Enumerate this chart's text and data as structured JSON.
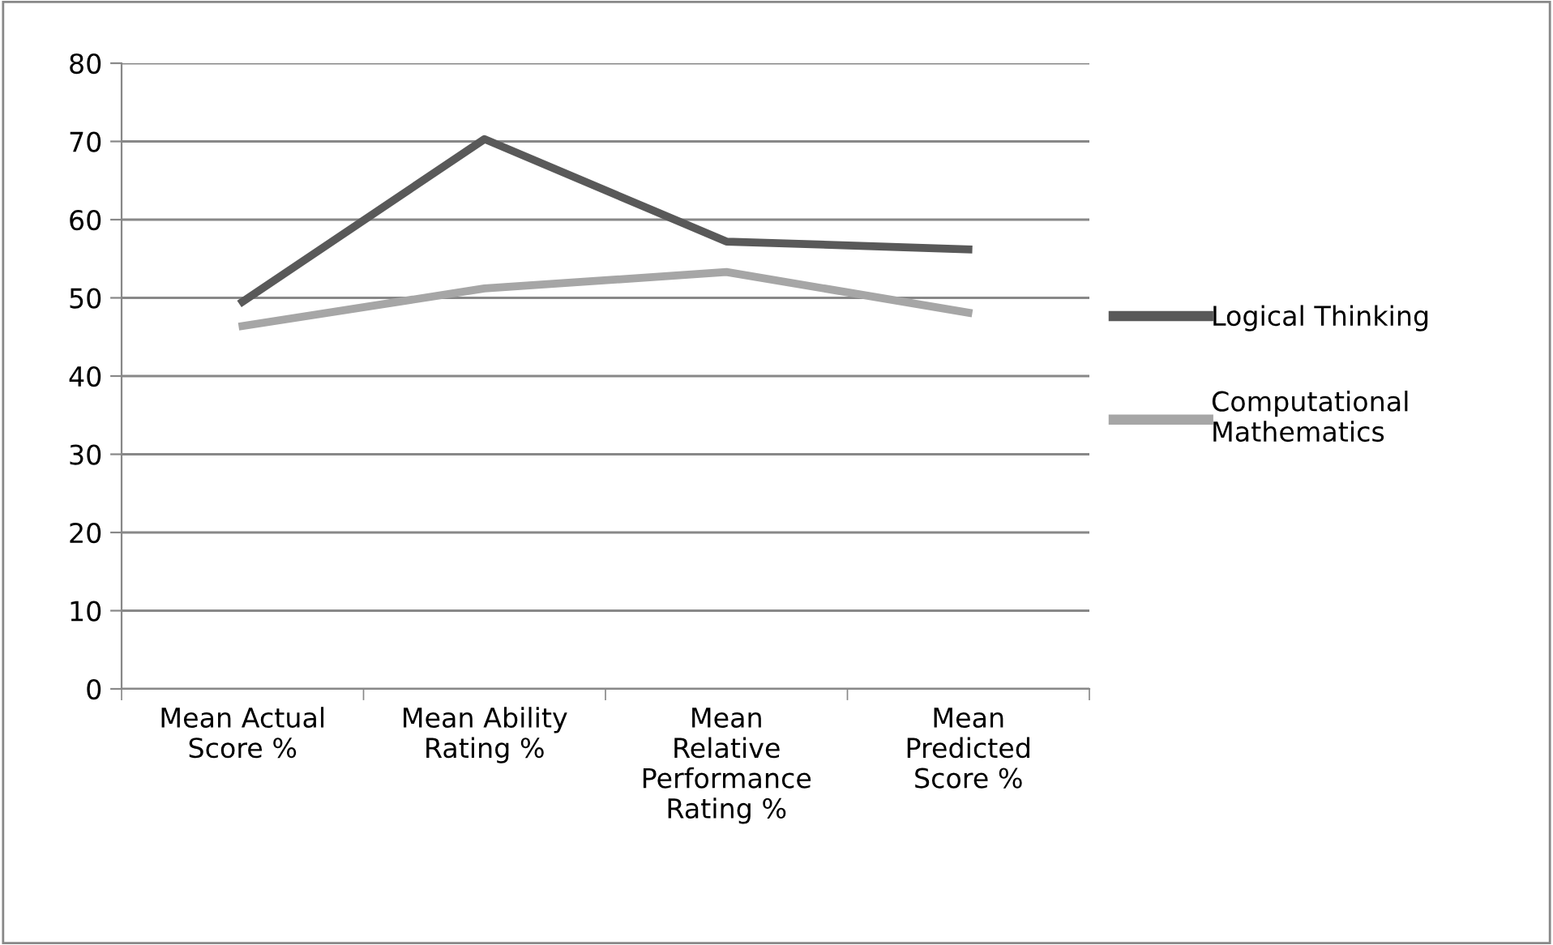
{
  "chart_data": {
    "type": "line",
    "categories": [
      "Mean Actual Score %",
      "Mean Ability Rating %",
      "Mean Relative Performance Rating %",
      "Mean Predicted Score %"
    ],
    "series": [
      {
        "name": "Logical Thinking",
        "color": "#595959",
        "values": [
          49.5,
          70.3,
          57.2,
          56.2
        ]
      },
      {
        "name": "Computational Mathematics",
        "color": "#a6a6a6",
        "values": [
          46.4,
          51.2,
          53.3,
          48.1
        ]
      }
    ],
    "ylim": [
      0,
      80
    ],
    "yticks": [
      0,
      10,
      20,
      30,
      40,
      50,
      60,
      70,
      80
    ],
    "grid": "y",
    "legend": "right",
    "marker": "none",
    "line_style": "solid"
  }
}
